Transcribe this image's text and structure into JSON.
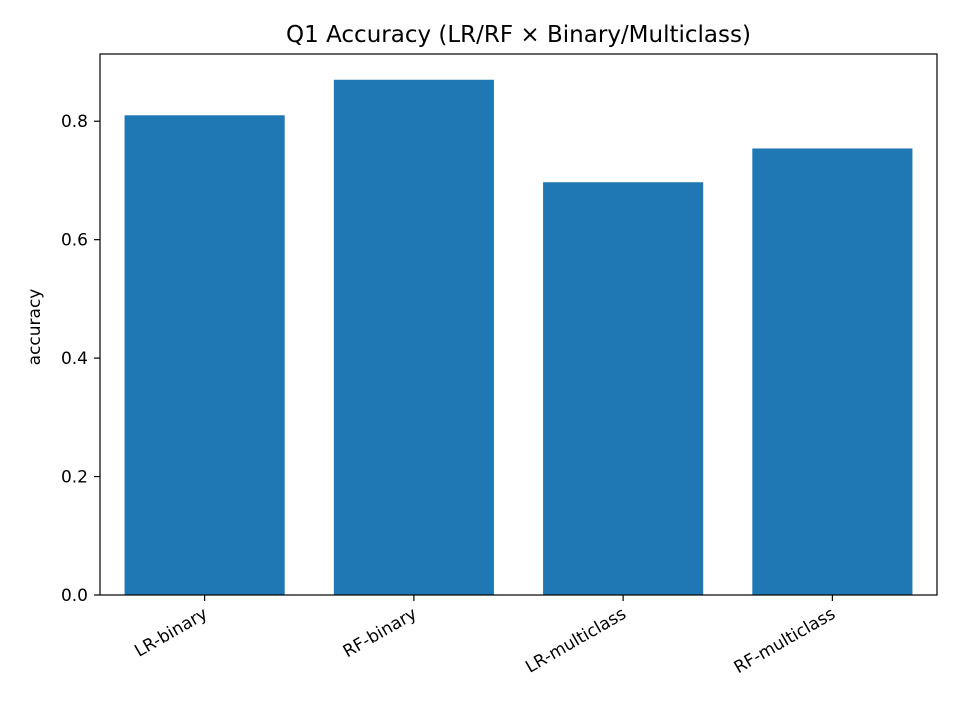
{
  "chart_data": {
    "type": "bar",
    "title": "Q1 Accuracy (LR/RF × Binary/Multiclass)",
    "xlabel": "",
    "ylabel": "accuracy",
    "categories": [
      "LR-binary",
      "RF-binary",
      "LR-multiclass",
      "RF-multiclass"
    ],
    "values": [
      0.81,
      0.87,
      0.697,
      0.754
    ],
    "ylim": [
      0,
      0.9135
    ],
    "yticks": [
      0.0,
      0.2,
      0.4,
      0.6,
      0.8
    ],
    "ytick_labels": [
      "0.0",
      "0.2",
      "0.4",
      "0.6",
      "0.8"
    ],
    "bar_color": "#1f77b4",
    "grid": false,
    "legend": false
  }
}
